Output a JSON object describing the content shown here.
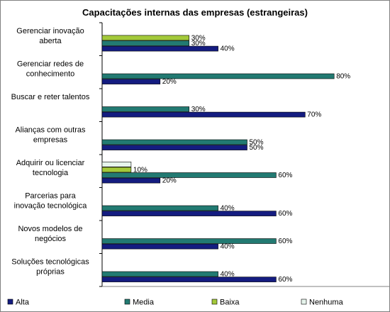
{
  "chart_data": {
    "type": "bar",
    "orientation": "horizontal",
    "title": "Capacitações internas das empresas (estrangeiras)",
    "xlabel": "",
    "ylabel": "",
    "xlim": [
      0,
      100
    ],
    "grid": false,
    "legend_position": "bottom",
    "categories": [
      [
        "Gerenciar inovação",
        "aberta"
      ],
      [
        "Gerenciar redes de",
        "conhecimento"
      ],
      [
        "Buscar e reter talentos"
      ],
      [
        "Alianças com outras",
        "empresas"
      ],
      [
        "Adquirir ou licenciar",
        "tecnologia"
      ],
      [
        "Parcerias para",
        "inovação tecnológica"
      ],
      [
        "Novos modelos de",
        "negócios"
      ],
      [
        "Soluções tecnológicas",
        "próprias"
      ]
    ],
    "series": [
      {
        "name": "Nenhuma",
        "color": "#e6f4ec",
        "values": [
          0,
          0,
          0,
          0,
          10,
          0,
          0,
          0
        ],
        "labels": [
          "",
          "",
          "",
          "",
          "",
          "",
          "",
          ""
        ]
      },
      {
        "name": "Baixa",
        "color": "#a3c93a",
        "values": [
          30,
          0,
          0,
          0,
          10,
          0,
          0,
          0
        ],
        "labels": [
          "30%",
          "",
          "",
          "",
          "10%",
          "",
          "",
          ""
        ]
      },
      {
        "name": "Media",
        "color": "#227a72",
        "values": [
          30,
          80,
          30,
          50,
          60,
          40,
          60,
          40
        ],
        "labels": [
          "30%",
          "80%",
          "30%",
          "50%",
          "60%",
          "40%",
          "60%",
          "40%"
        ]
      },
      {
        "name": "Alta",
        "color": "#141c80",
        "values": [
          40,
          20,
          70,
          50,
          20,
          60,
          40,
          60
        ],
        "labels": [
          "40%",
          "20%",
          "70%",
          "50%",
          "20%",
          "60%",
          "40%",
          "60%"
        ]
      }
    ],
    "legend_order": [
      "Alta",
      "Media",
      "Baixa",
      "Nenhuma"
    ]
  }
}
